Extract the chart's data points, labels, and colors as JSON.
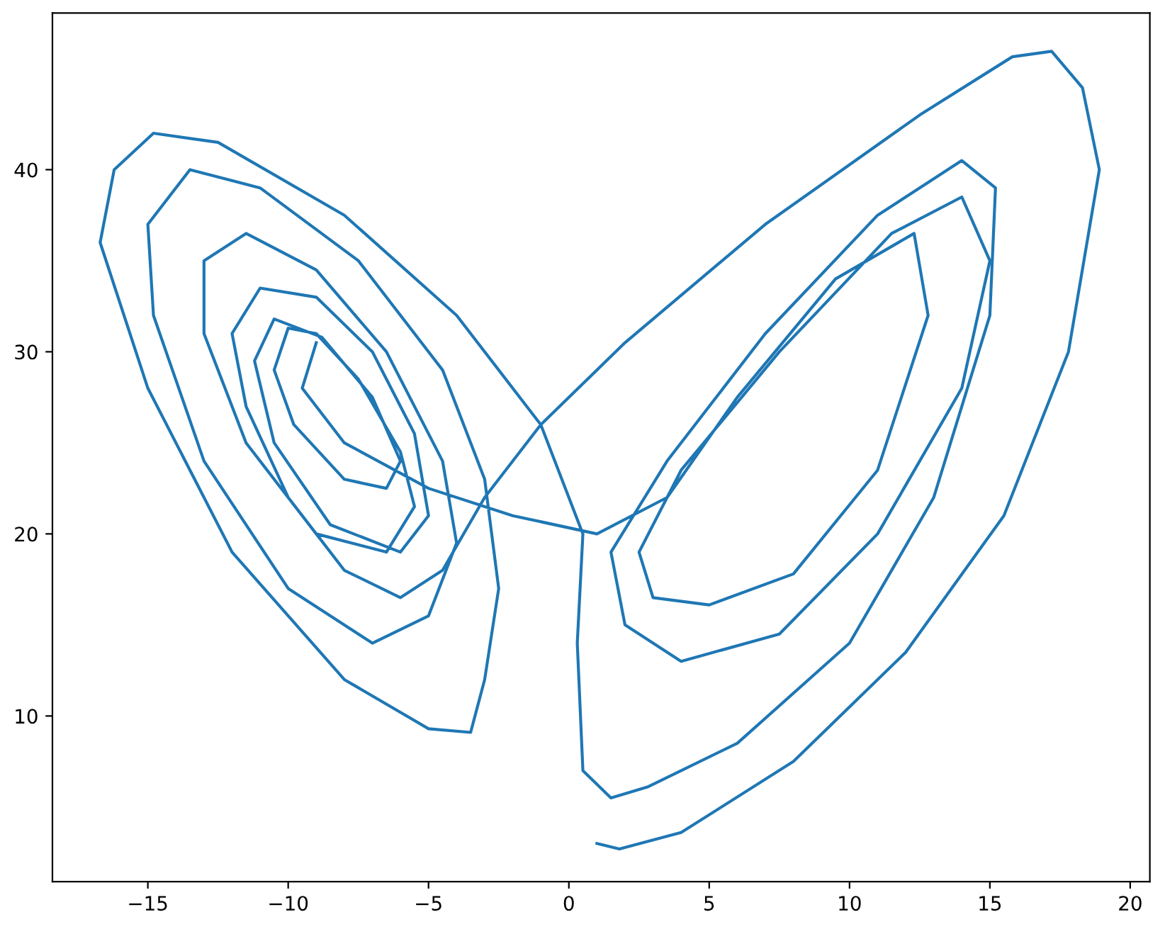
{
  "chart_data": {
    "type": "line",
    "line_style": "solid",
    "marker": "none",
    "grid": false,
    "legend": false,
    "xlim": [
      -18.4,
      20.7
    ],
    "ylim": [
      0.9,
      48.6
    ],
    "xticks": [
      {
        "value": -15,
        "label": "−15"
      },
      {
        "value": -10,
        "label": "−10"
      },
      {
        "value": -5,
        "label": "−5"
      },
      0,
      5,
      10,
      15,
      20
    ],
    "yticks": [
      10,
      20,
      30,
      40
    ],
    "series": [
      {
        "color": "#1f77b4",
        "x": [
          1,
          1.8,
          4,
          8,
          12,
          15.5,
          17.8,
          18.9,
          18.3,
          17.2,
          15.8,
          12.5,
          7,
          2,
          -1,
          -3,
          -4.5,
          -6,
          -8,
          -10,
          -11.5,
          -12,
          -11,
          -9,
          -7,
          -5.5,
          -5,
          -6,
          -8.5,
          -10.5,
          -11.2,
          -10.5,
          -8.8,
          -7,
          -6,
          -6.5,
          -8,
          -9.8,
          -10.5,
          -10,
          -9,
          -7.5,
          -6,
          -5.5,
          -6.5,
          -9,
          -11.5,
          -13,
          -13,
          -11.5,
          -9,
          -6.5,
          -4.5,
          -4,
          -5,
          -7,
          -10,
          -13,
          -14.8,
          -15,
          -13.5,
          -11,
          -7.5,
          -4.5,
          -3,
          -2.5,
          -3,
          -3.5,
          -5,
          -8,
          -12,
          -15,
          -16.7,
          -16.2,
          -14.8,
          -12.5,
          -8,
          -4,
          -1,
          0.5,
          0.3,
          0.5,
          1.5,
          2.8,
          6,
          10,
          13,
          15,
          15.2,
          14,
          11,
          7,
          3.5,
          1.5,
          2,
          4,
          7.5,
          11,
          14,
          15,
          14,
          11.5,
          7.5,
          4,
          2.5,
          3,
          5,
          8,
          11,
          12.8,
          12.3,
          9.5,
          6,
          3.5,
          1,
          -2,
          -5,
          -8,
          -9.5,
          -9
        ],
        "values": [
          3,
          2.7,
          3.6,
          7.5,
          13.5,
          21,
          30,
          40,
          44.5,
          46.5,
          46.2,
          43,
          37,
          30.5,
          26,
          22,
          18,
          16.5,
          18,
          22,
          27,
          31,
          33.5,
          33,
          30,
          25.5,
          21,
          19,
          20.5,
          25,
          29.5,
          31.8,
          30.8,
          27.5,
          24,
          22.5,
          23,
          26,
          29,
          31.3,
          31,
          28.5,
          24.5,
          21.5,
          19,
          20,
          25,
          31,
          35,
          36.5,
          34.5,
          30,
          24,
          19.5,
          15.5,
          14,
          17,
          24,
          32,
          37,
          40,
          39,
          35,
          29,
          23,
          17,
          12,
          9.1,
          9.3,
          12,
          19,
          28,
          36,
          40,
          42,
          41.5,
          37.5,
          32,
          26,
          20,
          14,
          7,
          5.5,
          6.1,
          8.5,
          14,
          22,
          32,
          39,
          40.5,
          37.5,
          31,
          24,
          19,
          15,
          13,
          14.5,
          20,
          28,
          35,
          38.5,
          36.5,
          30,
          23.5,
          19,
          16.5,
          16.1,
          17.8,
          23.5,
          32,
          36.5,
          34,
          27.5,
          22,
          20,
          21,
          22.5,
          25,
          28,
          30.5
        ]
      }
    ]
  }
}
